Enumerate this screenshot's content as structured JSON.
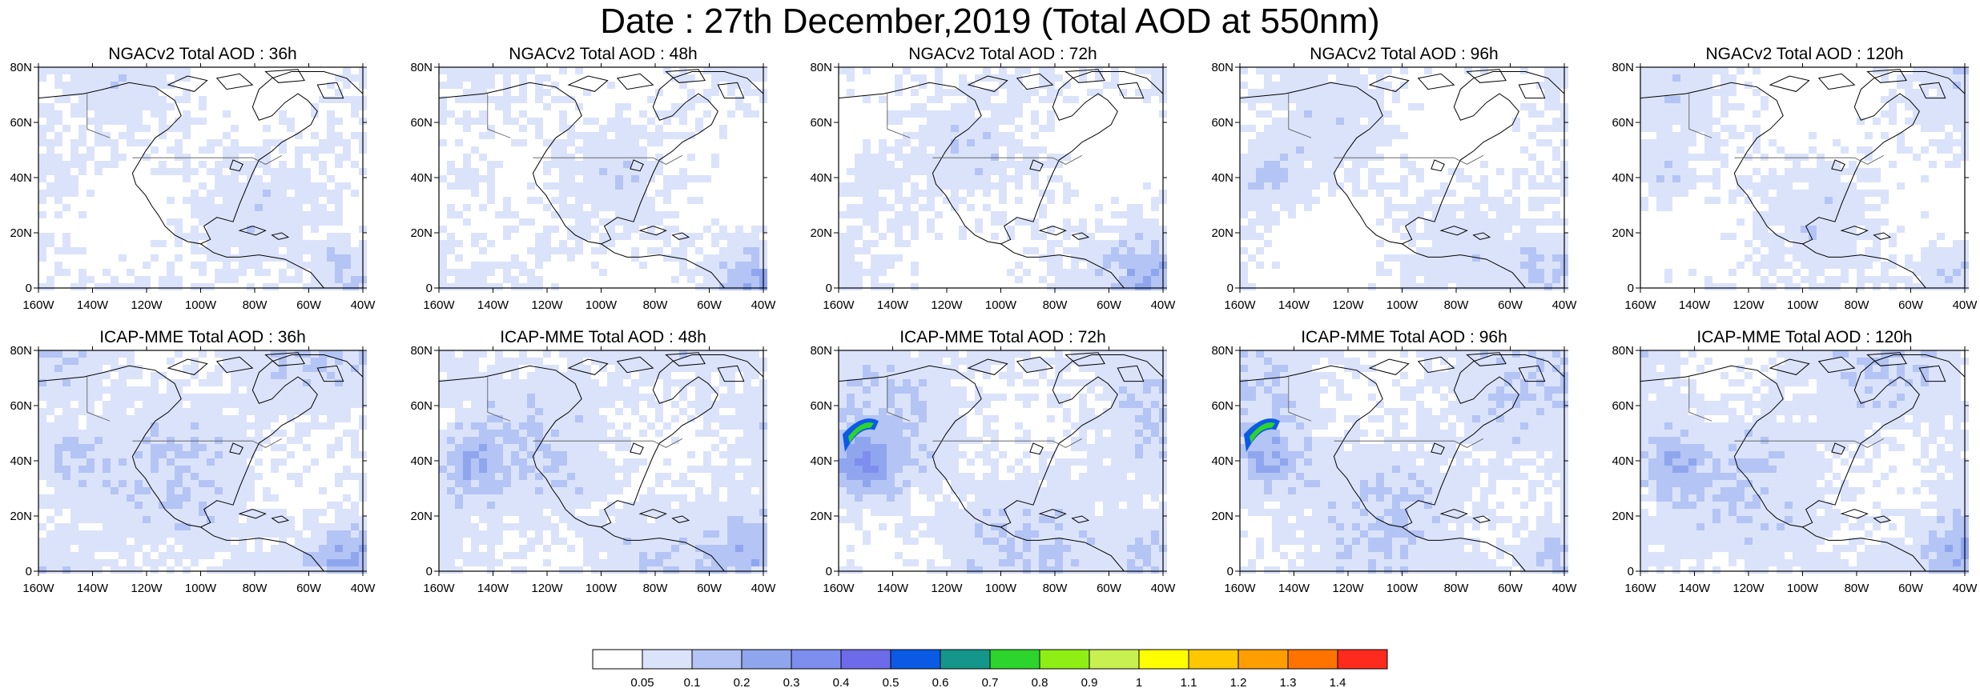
{
  "title": "Date : 27th December,2019 (Total AOD at 550nm)",
  "panels": [
    {
      "title": "NGACv2 Total AOD : 36h",
      "model": "NGACv2",
      "lead": "36h",
      "intensity": 0.3
    },
    {
      "title": "NGACv2 Total AOD : 48h",
      "model": "NGACv2",
      "lead": "48h",
      "intensity": 0.4
    },
    {
      "title": "NGACv2 Total AOD : 72h",
      "model": "NGACv2",
      "lead": "72h",
      "intensity": 0.35
    },
    {
      "title": "NGACv2 Total AOD : 96h",
      "model": "NGACv2",
      "lead": "96h",
      "intensity": 0.45
    },
    {
      "title": "NGACv2 Total AOD : 120h",
      "model": "NGACv2",
      "lead": "120h",
      "intensity": 0.5
    },
    {
      "title": "ICAP-MME Total AOD : 36h",
      "model": "ICAP-MME",
      "lead": "36h",
      "intensity": 0.5
    },
    {
      "title": "ICAP-MME Total AOD : 48h",
      "model": "ICAP-MME",
      "lead": "48h",
      "intensity": 0.5
    },
    {
      "title": "ICAP-MME Total AOD : 72h",
      "model": "ICAP-MME",
      "lead": "72h",
      "intensity": 0.85
    },
    {
      "title": "ICAP-MME Total AOD : 96h",
      "model": "ICAP-MME",
      "lead": "96h",
      "intensity": 0.75
    },
    {
      "title": "ICAP-MME Total AOD : 120h",
      "model": "ICAP-MME",
      "lead": "120h",
      "intensity": 0.55
    }
  ],
  "axes": {
    "lon_ticks": [
      "160W",
      "140W",
      "120W",
      "100W",
      "80W",
      "60W",
      "40W"
    ],
    "lon_values": [
      -160,
      -140,
      -120,
      -100,
      -80,
      -60,
      -40
    ],
    "lat_ticks": [
      "80N",
      "60N",
      "40N",
      "20N",
      "0"
    ],
    "lat_values": [
      80,
      60,
      40,
      20,
      0
    ],
    "lon_range": [
      -160,
      -40
    ],
    "lat_range": [
      0,
      80
    ]
  },
  "colorbar": {
    "levels": [
      "0.05",
      "0.1",
      "0.2",
      "0.3",
      "0.4",
      "0.5",
      "0.6",
      "0.7",
      "0.8",
      "0.9",
      "1",
      "1.1",
      "1.2",
      "1.3",
      "1.4"
    ],
    "colors": [
      "#ffffff",
      "#dbe3fb",
      "#b4c4f4",
      "#8fa6ef",
      "#7e8eef",
      "#6d6be9",
      "#0a5ae6",
      "#14968a",
      "#2cd42c",
      "#8fee14",
      "#c8f050",
      "#ffff00",
      "#ffc800",
      "#ff9e00",
      "#ff7300",
      "#ff2a1e"
    ]
  }
}
